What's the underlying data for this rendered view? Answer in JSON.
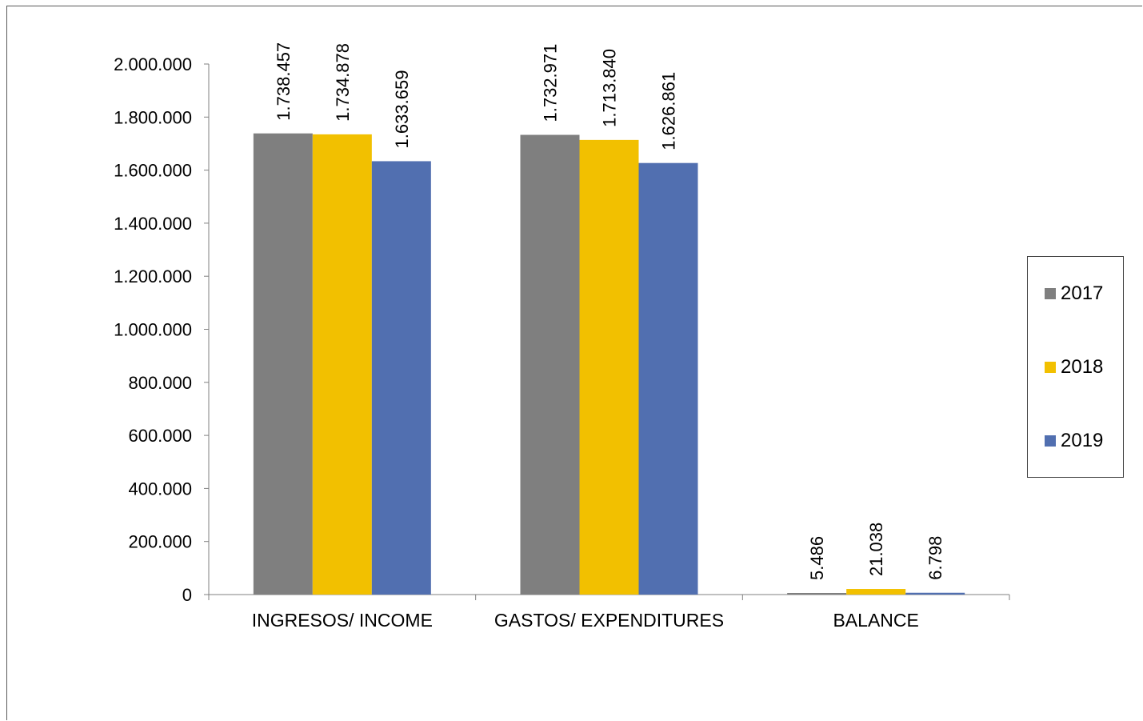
{
  "chart_data": {
    "type": "bar",
    "categories": [
      "INGRESOS/ INCOME",
      "GASTOS/ EXPENDITURES",
      "BALANCE"
    ],
    "series": [
      {
        "name": "2017",
        "color": "#7f7f7f",
        "values": [
          1738457,
          1732971,
          5486
        ],
        "labels": [
          "1.738.457",
          "1.732.971",
          "5.486"
        ]
      },
      {
        "name": "2018",
        "color": "#f2c000",
        "values": [
          1734878,
          1713840,
          21038
        ],
        "labels": [
          "1.734.878",
          "1.713.840",
          "21.038"
        ]
      },
      {
        "name": "2019",
        "color": "#516fb0",
        "values": [
          1633659,
          1626861,
          6798
        ],
        "labels": [
          "1.633.659",
          "1.626.861",
          "6.798"
        ]
      }
    ],
    "ylim": [
      0,
      2000000
    ],
    "yticks": [
      0,
      200000,
      400000,
      600000,
      800000,
      1000000,
      1200000,
      1400000,
      1600000,
      1800000,
      2000000
    ],
    "ytick_labels": [
      "0",
      "200.000",
      "400.000",
      "600.000",
      "800.000",
      "1.000.000",
      "1.200.000",
      "1.400.000",
      "1.600.000",
      "1.800.000",
      "2.000.000"
    ],
    "grid": false,
    "legend_position": "right",
    "title": "",
    "xlabel": "",
    "ylabel": ""
  }
}
